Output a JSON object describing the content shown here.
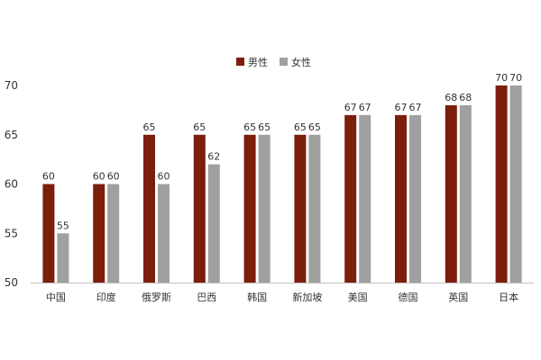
{
  "chart_data": {
    "type": "bar",
    "categories": [
      "中国",
      "印度",
      "俄罗斯",
      "巴西",
      "韩国",
      "新加坡",
      "美国",
      "德国",
      "英国",
      "日本"
    ],
    "series": [
      {
        "name": "男性",
        "color": "#7B1E0C",
        "values": [
          60,
          60,
          65,
          65,
          65,
          65,
          67,
          67,
          68,
          70
        ]
      },
      {
        "name": "女性",
        "color": "#A0A0A0",
        "values": [
          55,
          60,
          60,
          62,
          65,
          65,
          67,
          67,
          68,
          70
        ]
      }
    ],
    "ylim": [
      50,
      70
    ],
    "yticks": [
      50,
      55,
      60,
      65,
      70
    ],
    "grid": false,
    "legend_position": "top-center",
    "data_labels": true
  }
}
